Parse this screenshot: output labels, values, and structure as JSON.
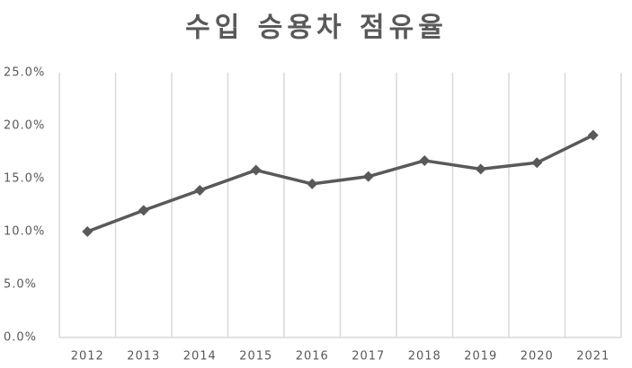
{
  "chart_data": {
    "type": "line",
    "title": "수입 승용차 점유율",
    "categories": [
      "2012",
      "2013",
      "2014",
      "2015",
      "2016",
      "2017",
      "2018",
      "2019",
      "2020",
      "2021"
    ],
    "values": [
      10.0,
      12.0,
      13.9,
      15.8,
      14.5,
      15.2,
      16.7,
      15.9,
      16.5,
      19.1
    ],
    "color": "#595959",
    "ylim": [
      0,
      25
    ],
    "yticks": [
      {
        "value": 0,
        "label": "0.0%"
      },
      {
        "value": 5,
        "label": "5.0%"
      },
      {
        "value": 10,
        "label": "10.0%"
      },
      {
        "value": 15,
        "label": "15.0%"
      },
      {
        "value": 20,
        "label": "20.0%"
      },
      {
        "value": 25,
        "label": "25.0%"
      }
    ],
    "grid": true
  }
}
